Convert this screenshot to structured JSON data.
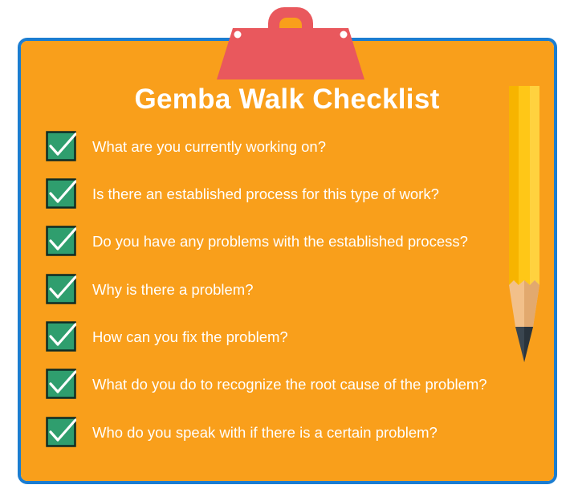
{
  "title": "Gemba Walk Checklist",
  "colors": {
    "board": "#f99f1b",
    "border": "#1b7dd1",
    "clip": "#e9585d",
    "checkbox": "#2f9e6e",
    "text": "#ffffff",
    "pencil": "#ffc717"
  },
  "icons": {
    "checkbox": "checkbox-checked-icon",
    "clip": "clipboard-clip-icon",
    "pencil": "pencil-icon"
  },
  "items": [
    {
      "text": "What are you currently working on?",
      "checked": true
    },
    {
      "text": "Is there an established process for this type of work?",
      "checked": true
    },
    {
      "text": "Do you have any problems with the established process?",
      "checked": true
    },
    {
      "text": "Why is there a problem?",
      "checked": true
    },
    {
      "text": "How can you fix the problem?",
      "checked": true
    },
    {
      "text": "What do you do to recognize the root cause of the problem?",
      "checked": true
    },
    {
      "text": "Who do you speak with if there is a certain problem?",
      "checked": true
    }
  ]
}
